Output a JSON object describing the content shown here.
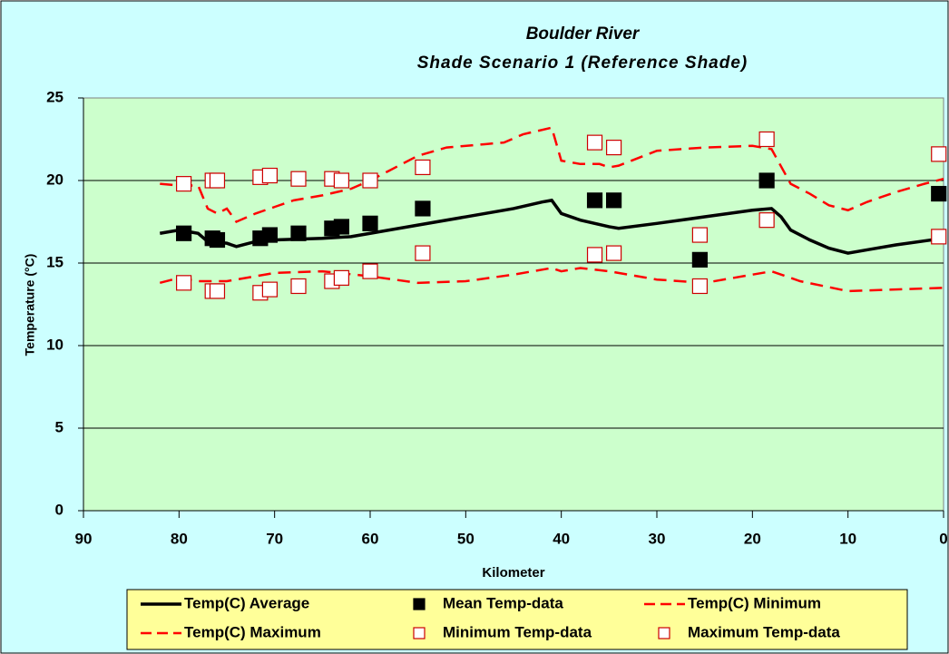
{
  "chart_data": {
    "type": "line",
    "title": "Boulder River",
    "subtitle": "Shade Scenario 1  (Reference Shade)",
    "x_label": "Kilometer",
    "y_label": "Temperature (°C)",
    "xlim": [
      90,
      0
    ],
    "xticks": [
      90,
      80,
      70,
      60,
      50,
      40,
      30,
      20,
      10,
      0
    ],
    "ylim": [
      0,
      25
    ],
    "yticks": [
      0,
      5,
      10,
      15,
      20,
      25
    ],
    "grid": true,
    "legend": "bottom",
    "series": [
      {
        "name": "Temp(C) Average",
        "color": "#000000",
        "style": "solid",
        "x": [
          82,
          80,
          78,
          77,
          75,
          74,
          72,
          70,
          65,
          62,
          60,
          55,
          50,
          45,
          42,
          41,
          40,
          38,
          35,
          34,
          30,
          25,
          20,
          18,
          17,
          16,
          14,
          12,
          10,
          8,
          5,
          0
        ],
        "values": [
          16.8,
          17.0,
          16.8,
          16.3,
          16.2,
          16.0,
          16.3,
          16.4,
          16.5,
          16.6,
          16.8,
          17.3,
          17.8,
          18.3,
          18.7,
          18.8,
          18.0,
          17.6,
          17.2,
          17.1,
          17.4,
          17.8,
          18.2,
          18.3,
          17.8,
          17.0,
          16.4,
          15.9,
          15.6,
          15.8,
          16.1,
          16.5
        ]
      },
      {
        "name": "Mean Temp-data",
        "color": "#000000",
        "style": "filled-square",
        "x": [
          79.5,
          76.5,
          76,
          71.5,
          70.5,
          67.5,
          64,
          63,
          60,
          54.5,
          36.5,
          34.5,
          25.5,
          18.5,
          0.5
        ],
        "values": [
          16.8,
          16.5,
          16.4,
          16.5,
          16.7,
          16.8,
          17.1,
          17.2,
          17.4,
          18.3,
          18.8,
          18.8,
          15.2,
          20.0,
          19.2
        ]
      },
      {
        "name": "Temp(C) Minimum",
        "color": "#ff0000",
        "style": "dashed",
        "x": [
          82,
          80,
          78,
          75,
          72,
          70,
          65,
          60,
          55,
          50,
          45,
          41,
          40,
          38,
          35,
          30,
          25,
          20,
          18,
          15,
          10,
          5,
          0
        ],
        "values": [
          13.8,
          14.1,
          13.9,
          13.9,
          14.2,
          14.4,
          14.5,
          14.2,
          13.8,
          13.9,
          14.3,
          14.7,
          14.5,
          14.7,
          14.5,
          14.0,
          13.8,
          14.3,
          14.5,
          13.9,
          13.3,
          13.4,
          13.5
        ]
      },
      {
        "name": "Temp(C) Maximum",
        "color": "#ff0000",
        "style": "dashed",
        "x": [
          82,
          80,
          78,
          77,
          76,
          75,
          74,
          72,
          70,
          68,
          65,
          62,
          60,
          58,
          55,
          52,
          48,
          46,
          44,
          41,
          40,
          38,
          36,
          35,
          34,
          30,
          25,
          20,
          18,
          16,
          14,
          12,
          10,
          8,
          5,
          2,
          0
        ],
        "values": [
          19.8,
          19.7,
          19.7,
          18.3,
          18.0,
          18.3,
          17.5,
          18.0,
          18.4,
          18.8,
          19.1,
          19.5,
          20.0,
          20.6,
          21.5,
          22.0,
          22.2,
          22.3,
          22.8,
          23.2,
          21.2,
          21.0,
          21.0,
          20.8,
          20.9,
          21.8,
          22.0,
          22.1,
          21.9,
          19.8,
          19.2,
          18.5,
          18.2,
          18.7,
          19.3,
          19.8,
          20.1
        ]
      },
      {
        "name": "Minimum Temp-data",
        "color": "#cc0000",
        "style": "open-square",
        "x": [
          79.5,
          76.5,
          76,
          71.5,
          70.5,
          67.5,
          64,
          63,
          60,
          54.5,
          36.5,
          34.5,
          25.5,
          18.5,
          0.5
        ],
        "values": [
          13.8,
          13.3,
          13.3,
          13.2,
          13.4,
          13.6,
          13.9,
          14.1,
          14.5,
          15.6,
          15.5,
          15.6,
          13.6,
          17.6,
          16.6
        ]
      },
      {
        "name": "Maximum Temp-data",
        "color": "#cc0000",
        "style": "open-square",
        "x": [
          79.5,
          76.5,
          76,
          71.5,
          70.5,
          67.5,
          64,
          63,
          60,
          54.5,
          36.5,
          34.5,
          25.5,
          18.5,
          0.5
        ],
        "values": [
          19.8,
          20.0,
          20.0,
          20.2,
          20.3,
          20.1,
          20.1,
          20.0,
          20.0,
          20.8,
          22.3,
          22.0,
          16.7,
          22.5,
          21.6
        ]
      }
    ]
  }
}
